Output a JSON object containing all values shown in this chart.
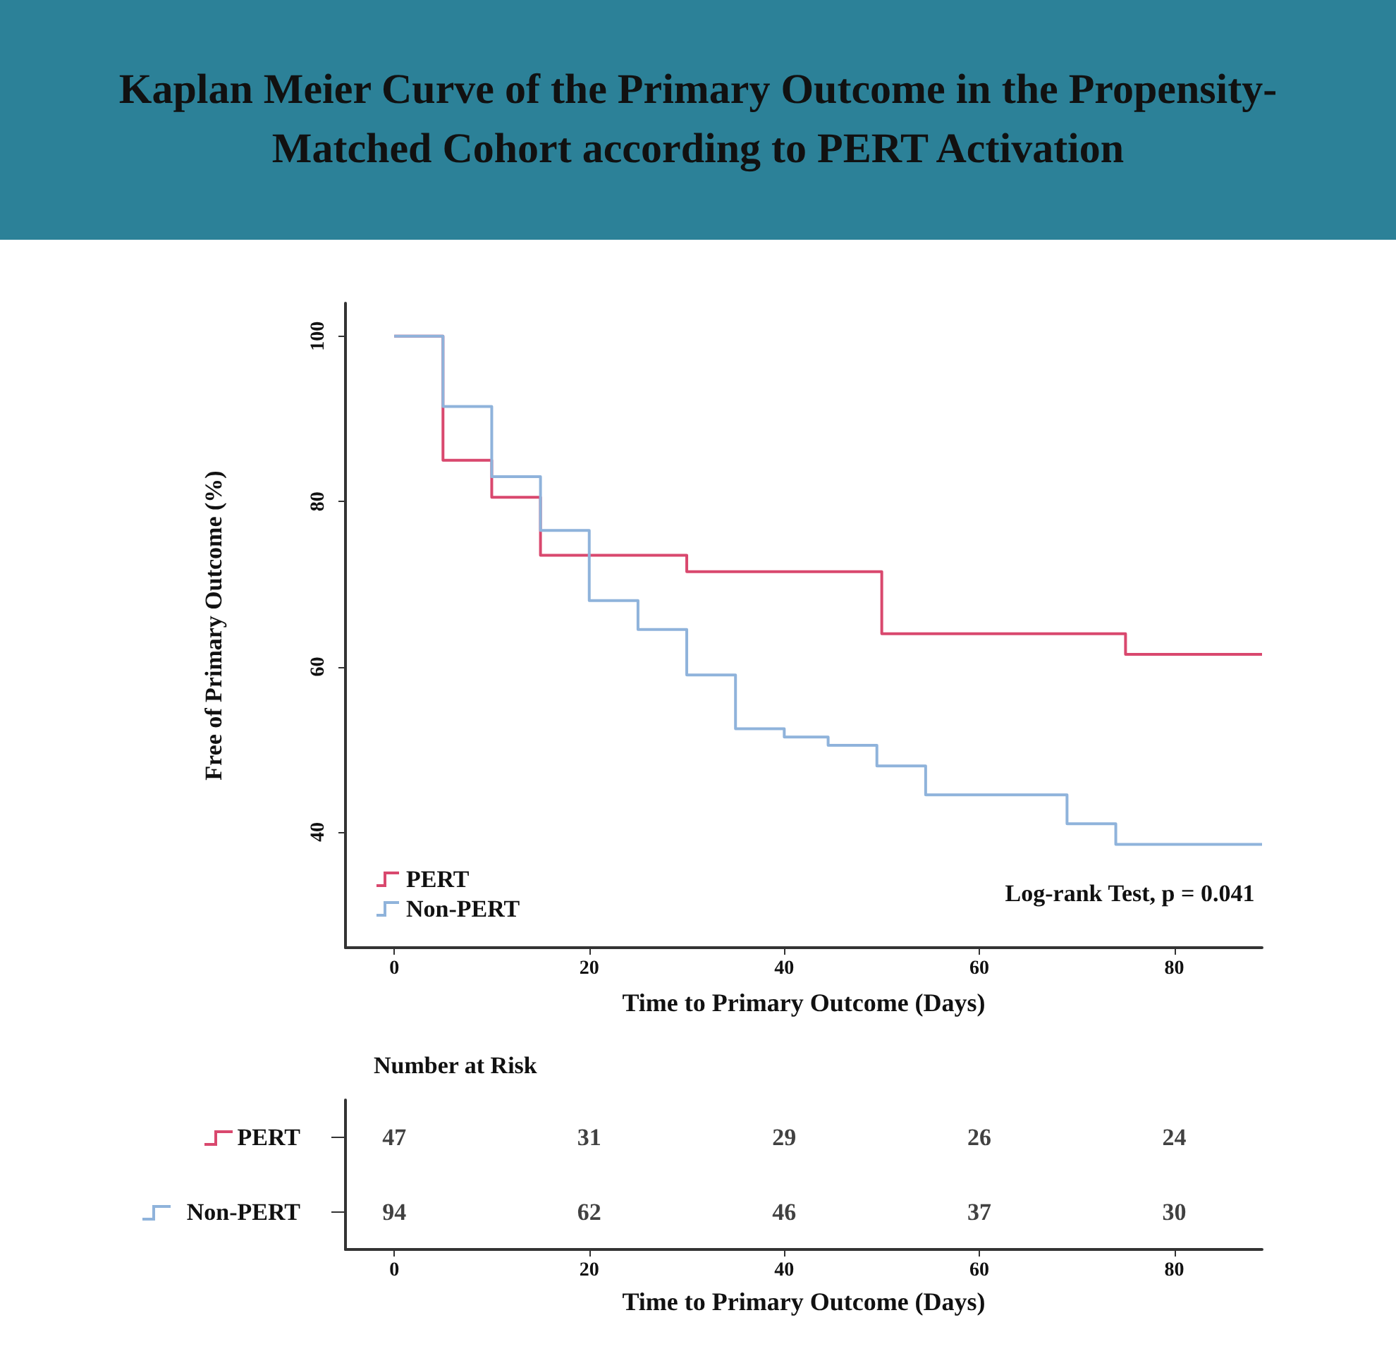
{
  "chart_data": [
    {
      "type": "step",
      "title": "Kaplan Meier Curve of the Primary Outcome in the Propensity-Matched Cohort according to PERT Activation",
      "xlabel": "Time to Primary Outcome (Days)",
      "ylabel": "Free of Primary Outcome (%)",
      "xlim": [
        -5,
        89
      ],
      "xticks": [
        0,
        20,
        40,
        60,
        80
      ],
      "ylim": [
        26,
        104
      ],
      "yticks": [
        40,
        60,
        80,
        100
      ],
      "grid": false,
      "legend": "bottom left",
      "annotations": [
        "Log-rank Test, p = 0.041"
      ],
      "series": [
        {
          "name": "PERT",
          "color": "#d9486e",
          "x": [
            0,
            5,
            10,
            15,
            30,
            50,
            75,
            89
          ],
          "values": [
            100,
            85,
            80.5,
            73.5,
            71.5,
            64,
            61.5,
            61.5
          ]
        },
        {
          "name": "Non-PERT",
          "color": "#8fb3db",
          "x": [
            0,
            5,
            10,
            15,
            20,
            25,
            30,
            35,
            40,
            44.5,
            49.5,
            54.5,
            69,
            74,
            89
          ],
          "values": [
            100,
            91.5,
            83,
            76.5,
            68,
            64.5,
            59,
            52.5,
            51.5,
            50.5,
            48,
            44.5,
            41,
            38.5,
            38.5
          ]
        }
      ]
    },
    {
      "type": "heatmap",
      "data_labels": true,
      "title": "Number at Risk",
      "xlabel": "Time to Primary Outcome (Days)",
      "xlim": [
        -5,
        89
      ],
      "xticks": [
        0,
        20,
        40,
        60,
        80
      ],
      "x": [
        0,
        20,
        40,
        60,
        80
      ],
      "y_categories": [
        "PERT",
        "Non-PERT"
      ],
      "cells": [
        [
          47,
          31,
          29,
          26,
          24
        ],
        [
          94,
          62,
          46,
          37,
          30
        ]
      ]
    }
  ]
}
